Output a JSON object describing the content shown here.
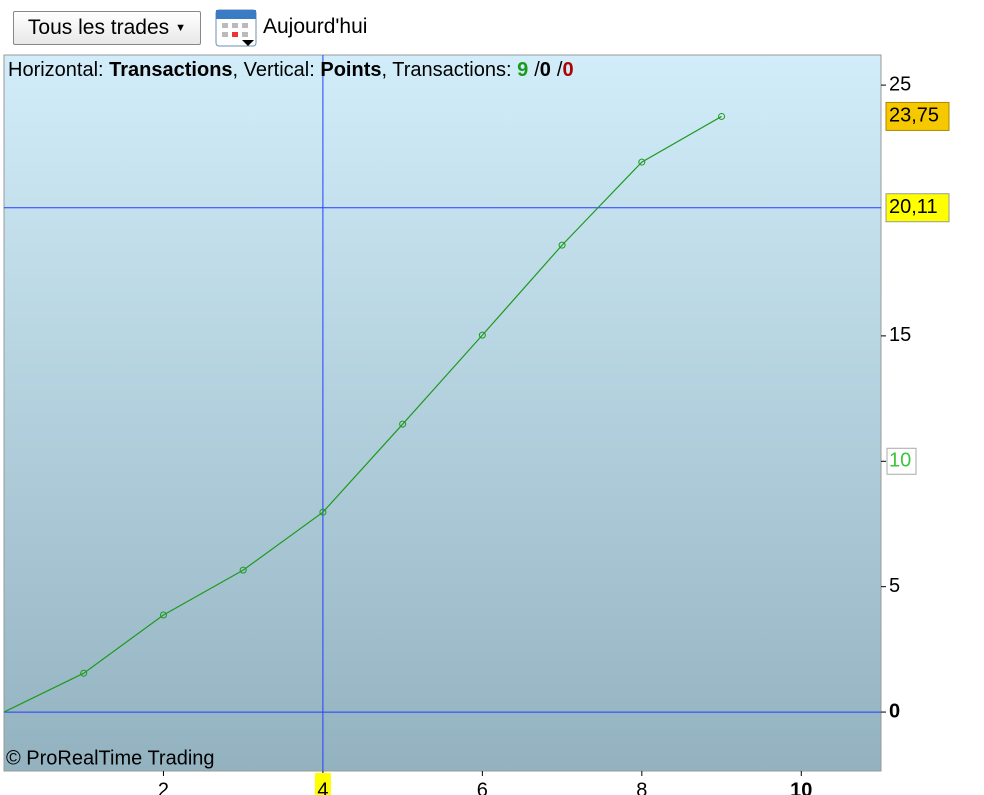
{
  "toolbar": {
    "dropdown": "Tous les trades",
    "date_button": "Aujourd'hui"
  },
  "chart_data": {
    "type": "line",
    "info": {
      "h_label": "Horizontal: ",
      "h_value": "Transactions",
      "v_label": ", Vertical: ",
      "v_value": "Points",
      "t_label": ", Transactions: ",
      "wins": 9,
      "sep": "/",
      "neutral": 0,
      "losses": 0
    },
    "copyright": "© ProRealTime Trading",
    "x": [
      0,
      1,
      2,
      3,
      4,
      5,
      6,
      7,
      8,
      9
    ],
    "series": [
      {
        "name": "Points",
        "color": "#1e9a1e",
        "values": [
          0,
          1.55,
          3.87,
          5.66,
          7.97,
          11.48,
          15.03,
          18.62,
          21.93,
          23.75
        ]
      }
    ],
    "last_value": {
      "value": 23.75,
      "label": "23,75"
    },
    "crosshair": {
      "x": {
        "value": 4,
        "label": "4"
      },
      "y": {
        "value": 20.11,
        "label": "20,11"
      }
    },
    "highlighted_ytick": 10,
    "xlim": [
      0,
      11
    ],
    "ylim": [
      -2.35,
      26.2
    ],
    "xticks": [
      2,
      4,
      6,
      8,
      10
    ],
    "yticks": [
      0,
      5,
      10,
      15,
      25
    ]
  }
}
